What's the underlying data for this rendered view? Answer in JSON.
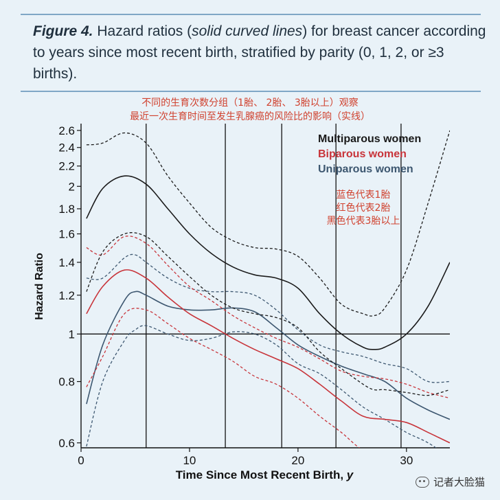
{
  "caption": {
    "figure_label": "Figure 4.",
    "text_before": "Hazard ratios (",
    "text_italic": "solid curved lines",
    "text_after": ") for breast cancer according to years since most recent birth, stratified by parity (0, 1, 2, or ≥3 births)."
  },
  "annotation": {
    "line1": "不同的生育次数分组（1胎、 2胎、 3胎以上）观察",
    "line2": "最近一次生育时间至发生乳腺癌的风险比的影响（实线）"
  },
  "side_note": {
    "line1": "蓝色代表1胎",
    "line2": "红色代表2胎",
    "line3": "黑色代表3胎以上"
  },
  "watermark": "记者大脸猫",
  "colors": {
    "multiparous": "#1a1a1a",
    "biparous": "#c8343a",
    "uniparous": "#3d5770",
    "note": "#d0412e"
  },
  "chart_data": {
    "type": "line",
    "xlabel": "Time Since Most Recent Birth,",
    "xlabel_italic": "y",
    "ylabel": "Hazard Ratio",
    "x_range": [
      0,
      34
    ],
    "y_range": [
      0.59,
      2.65
    ],
    "y_scale": "log",
    "x_ticks": [
      0,
      10,
      20,
      30
    ],
    "y_ticks": [
      "0.6",
      "0.8",
      "1",
      "1.2",
      "1.4",
      "1.6",
      "1.8",
      "2",
      "2.2",
      "2.4",
      "2.6"
    ],
    "y_tick_values": [
      0.6,
      0.8,
      1,
      1.2,
      1.4,
      1.6,
      1.8,
      2,
      2.2,
      2.4,
      2.6
    ],
    "vertical_lines": [
      6,
      13.3,
      18.5,
      23.5,
      29.5
    ],
    "reference_line": 1,
    "legend_position": "top-right",
    "series": [
      {
        "name": "Multiparous women",
        "group": "multiparous",
        "x": [
          0.5,
          2,
          4,
          6,
          8,
          10,
          12,
          14,
          16,
          18,
          20,
          22,
          24,
          26,
          27,
          28,
          30,
          32,
          34
        ],
        "y": [
          1.72,
          1.98,
          2.1,
          2.02,
          1.8,
          1.6,
          1.46,
          1.37,
          1.32,
          1.3,
          1.24,
          1.1,
          1.0,
          0.94,
          0.93,
          0.94,
          1.0,
          1.14,
          1.4
        ],
        "upper": [
          2.43,
          2.45,
          2.57,
          2.45,
          2.1,
          1.85,
          1.65,
          1.55,
          1.5,
          1.49,
          1.44,
          1.3,
          1.15,
          1.1,
          1.09,
          1.13,
          1.35,
          1.85,
          2.6
        ],
        "lower": [
          1.22,
          1.47,
          1.6,
          1.58,
          1.44,
          1.31,
          1.2,
          1.13,
          1.1,
          1.08,
          1.03,
          0.92,
          0.85,
          0.79,
          0.77,
          0.77,
          0.76,
          0.75,
          0.77
        ]
      },
      {
        "name": "Biparous women",
        "group": "biparous",
        "x": [
          0.5,
          2,
          4,
          6,
          8,
          10,
          12,
          14,
          16,
          18,
          20,
          22,
          24,
          26,
          28,
          30,
          32,
          34
        ],
        "y": [
          1.1,
          1.25,
          1.35,
          1.3,
          1.19,
          1.1,
          1.04,
          0.98,
          0.93,
          0.89,
          0.85,
          0.79,
          0.73,
          0.68,
          0.67,
          0.66,
          0.63,
          0.6
        ],
        "upper": [
          1.5,
          1.45,
          1.58,
          1.53,
          1.38,
          1.25,
          1.17,
          1.09,
          1.03,
          0.98,
          0.94,
          0.89,
          0.84,
          0.82,
          0.81,
          0.79,
          0.76,
          0.74
        ],
        "lower": [
          0.78,
          0.9,
          1.1,
          1.12,
          1.05,
          0.98,
          0.93,
          0.88,
          0.82,
          0.79,
          0.74,
          0.68,
          0.63,
          0.58,
          0.57,
          0.56,
          0.55,
          0.53
        ]
      },
      {
        "name": "Uniparous women",
        "group": "uniparous",
        "x": [
          0.5,
          2,
          4,
          5,
          6,
          8,
          10,
          12,
          14,
          16,
          18,
          20,
          22,
          24,
          26,
          28,
          30,
          32,
          34
        ],
        "y": [
          0.72,
          0.95,
          1.17,
          1.22,
          1.2,
          1.14,
          1.12,
          1.12,
          1.13,
          1.11,
          1.03,
          0.95,
          0.9,
          0.86,
          0.83,
          0.8,
          0.74,
          0.7,
          0.67
        ],
        "upper": [
          1.3,
          1.3,
          1.43,
          1.45,
          1.4,
          1.3,
          1.24,
          1.22,
          1.22,
          1.2,
          1.12,
          1.02,
          0.95,
          0.92,
          0.9,
          0.87,
          0.85,
          0.8,
          0.8
        ],
        "lower": [
          0.59,
          0.8,
          0.97,
          1.02,
          1.04,
          1.0,
          0.97,
          0.98,
          1.01,
          1.0,
          0.95,
          0.87,
          0.83,
          0.77,
          0.71,
          0.67,
          0.63,
          0.6,
          0.56
        ]
      }
    ]
  }
}
